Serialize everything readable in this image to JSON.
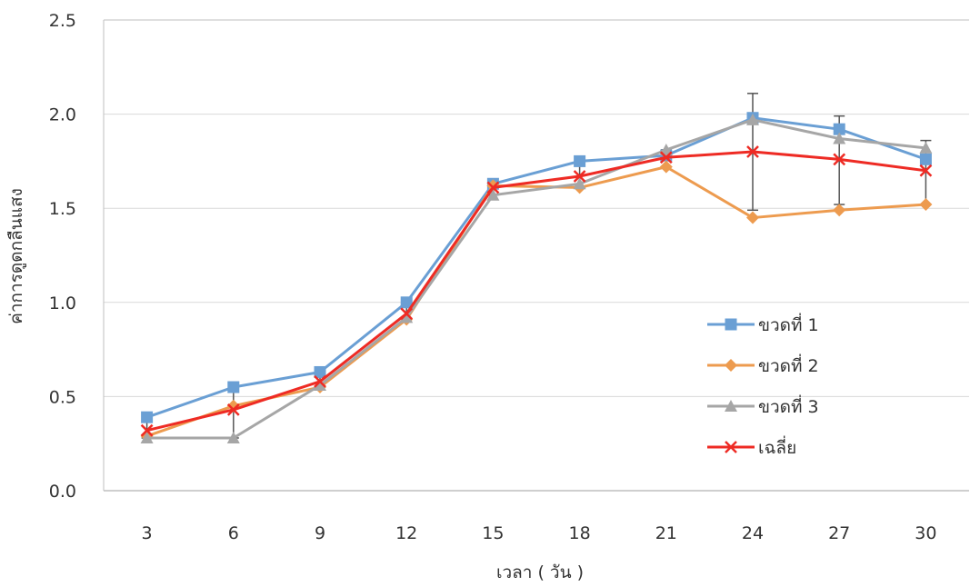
{
  "chart_data": {
    "type": "line",
    "categories": [
      "3",
      "6",
      "9",
      "12",
      "15",
      "18",
      "21",
      "24",
      "27",
      "30"
    ],
    "xlabel": "เวลา ( วัน )",
    "ylabel": "ค่าการดูดกลืนแสง",
    "ylim": [
      0,
      2.5
    ],
    "yticks": [
      "0.0",
      "0.5",
      "1.0",
      "1.5",
      "2.0",
      "2.5"
    ],
    "grid": true,
    "legend_position": "right",
    "series": [
      {
        "name": "ขวดที่ 1",
        "color": "#6a9fd4",
        "marker": "square",
        "values": [
          0.39,
          0.55,
          0.63,
          1.0,
          1.63,
          1.75,
          1.78,
          1.98,
          1.92,
          1.76
        ]
      },
      {
        "name": "ขวดที่ 2",
        "color": "#ed9b4f",
        "marker": "diamond",
        "values": [
          0.29,
          0.45,
          0.55,
          0.91,
          1.62,
          1.61,
          1.72,
          1.45,
          1.49,
          1.52
        ]
      },
      {
        "name": "ขวดที่ 3",
        "color": "#a6a6a6",
        "marker": "triangle",
        "values": [
          0.28,
          0.28,
          0.56,
          0.92,
          1.57,
          1.63,
          1.81,
          1.97,
          1.87,
          1.82
        ]
      },
      {
        "name": "เฉลี่ย",
        "color": "#ee2b24",
        "marker": "x",
        "values": [
          0.32,
          0.43,
          0.58,
          0.94,
          1.61,
          1.67,
          1.77,
          1.8,
          1.76,
          1.7
        ]
      }
    ],
    "error_bars": {
      "series": "เฉลี่ย",
      "low": [
        0.28,
        0.28,
        0.55,
        0.91,
        1.57,
        1.61,
        1.72,
        1.49,
        1.52,
        1.52
      ],
      "high": [
        0.39,
        0.55,
        0.63,
        1.0,
        1.63,
        1.75,
        1.81,
        2.11,
        1.99,
        1.86
      ]
    }
  }
}
